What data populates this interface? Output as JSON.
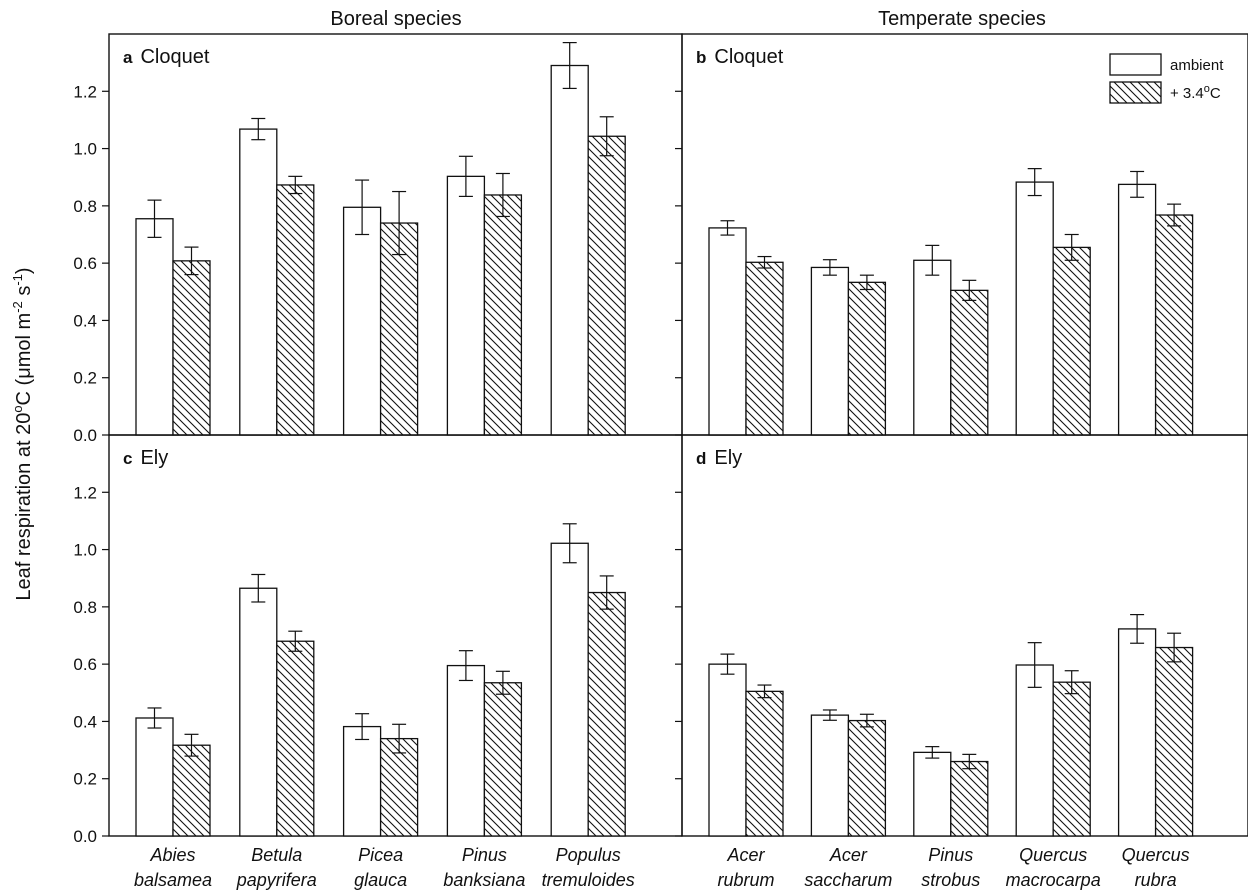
{
  "figure": {
    "column_titles": [
      "Boreal species",
      "Temperate species"
    ],
    "ylabel_main": "Leaf respiration at 20",
    "ylabel_deg": "o",
    "ylabel_rest": "C (μmol m",
    "ylabel_sup1": "-2",
    "ylabel_mid": " s",
    "ylabel_sup2": "-1",
    "ylabel_end": ")",
    "legend": {
      "ambient": "ambient",
      "warmed_prefix": "+ 3.4",
      "warmed_deg": "o",
      "warmed_suffix": "C"
    }
  },
  "chart_data": [
    {
      "type": "bar",
      "panel": "a",
      "site": "Cloquet",
      "group": "Boreal species",
      "categories": [
        [
          "Abies",
          "balsamea"
        ],
        [
          "Betula",
          "papyrifera"
        ],
        [
          "Picea",
          "glauca"
        ],
        [
          "Pinus",
          "banksiana"
        ],
        [
          "Populus",
          "tremuloides"
        ]
      ],
      "series": [
        {
          "name": "ambient",
          "values": [
            0.755,
            1.068,
            0.795,
            0.903,
            1.29
          ],
          "errors": [
            0.065,
            0.037,
            0.095,
            0.07,
            0.08
          ]
        },
        {
          "name": "+ 3.4°C",
          "values": [
            0.608,
            0.873,
            0.74,
            0.838,
            1.043
          ],
          "errors": [
            0.048,
            0.03,
            0.11,
            0.075,
            0.068
          ]
        }
      ],
      "ylim": [
        0,
        1.4
      ],
      "yticks": [
        "0.0",
        "0.2",
        "0.4",
        "0.6",
        "0.8",
        "1.0",
        "1.2"
      ]
    },
    {
      "type": "bar",
      "panel": "b",
      "site": "Cloquet",
      "group": "Temperate species",
      "categories": [
        [
          "Acer",
          "rubrum"
        ],
        [
          "Acer",
          "saccharum"
        ],
        [
          "Pinus",
          "strobus"
        ],
        [
          "Quercus",
          "macrocarpa"
        ],
        [
          "Quercus",
          "rubra"
        ]
      ],
      "series": [
        {
          "name": "ambient",
          "values": [
            0.723,
            0.585,
            0.61,
            0.883,
            0.875
          ],
          "errors": [
            0.025,
            0.027,
            0.052,
            0.047,
            0.045
          ]
        },
        {
          "name": "+ 3.4°C",
          "values": [
            0.603,
            0.533,
            0.505,
            0.655,
            0.768
          ],
          "errors": [
            0.02,
            0.025,
            0.035,
            0.045,
            0.038
          ]
        }
      ],
      "ylim": [
        0,
        1.4
      ]
    },
    {
      "type": "bar",
      "panel": "c",
      "site": "Ely",
      "group": "Boreal species",
      "categories": [
        [
          "Abies",
          "balsamea"
        ],
        [
          "Betula",
          "papyrifera"
        ],
        [
          "Picea",
          "glauca"
        ],
        [
          "Pinus",
          "banksiana"
        ],
        [
          "Populus",
          "tremuloides"
        ]
      ],
      "series": [
        {
          "name": "ambient",
          "values": [
            0.412,
            0.865,
            0.382,
            0.595,
            1.022
          ],
          "errors": [
            0.035,
            0.048,
            0.045,
            0.052,
            0.068
          ]
        },
        {
          "name": "+ 3.4°C",
          "values": [
            0.317,
            0.68,
            0.34,
            0.535,
            0.85
          ],
          "errors": [
            0.038,
            0.035,
            0.05,
            0.04,
            0.058
          ]
        }
      ],
      "ylim": [
        0,
        1.4
      ],
      "yticks": [
        "0.0",
        "0.2",
        "0.4",
        "0.6",
        "0.8",
        "1.0",
        "1.2"
      ]
    },
    {
      "type": "bar",
      "panel": "d",
      "site": "Ely",
      "group": "Temperate species",
      "categories": [
        [
          "Acer",
          "rubrum"
        ],
        [
          "Acer",
          "saccharum"
        ],
        [
          "Pinus",
          "strobus"
        ],
        [
          "Quercus",
          "macrocarpa"
        ],
        [
          "Quercus",
          "rubra"
        ]
      ],
      "series": [
        {
          "name": "ambient",
          "values": [
            0.6,
            0.422,
            0.292,
            0.597,
            0.723
          ],
          "errors": [
            0.035,
            0.018,
            0.02,
            0.078,
            0.05
          ]
        },
        {
          "name": "+ 3.4°C",
          "values": [
            0.505,
            0.403,
            0.26,
            0.537,
            0.658
          ],
          "errors": [
            0.022,
            0.022,
            0.025,
            0.04,
            0.05
          ]
        }
      ],
      "ylim": [
        0,
        1.4
      ]
    }
  ]
}
